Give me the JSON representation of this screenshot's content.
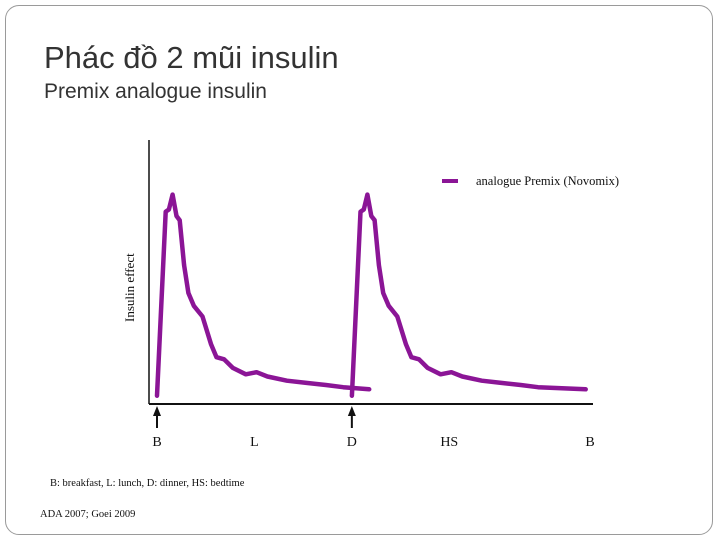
{
  "slide": {
    "title": "Phác đồ 2 mũi insulin",
    "subtitle": "Premix analogue insulin",
    "abbreviations": "B: breakfast, L: lunch, D: dinner, HS: bedtime",
    "source": "ADA 2007; Goei 2009"
  },
  "colors": {
    "series": "#8b1596",
    "axis": "#111111",
    "text": "#333333"
  },
  "chart_data": {
    "type": "line",
    "title": "",
    "xlabel": "",
    "ylabel": "Insulin effect",
    "x_ticks": [
      {
        "label": "B",
        "x": 0,
        "arrow": true
      },
      {
        "label": "L",
        "x": 4.5,
        "arrow": false
      },
      {
        "label": "D",
        "x": 9,
        "arrow": true
      },
      {
        "label": "HS",
        "x": 13.5,
        "arrow": false
      },
      {
        "label": "B",
        "x": 20,
        "arrow": false
      }
    ],
    "xlim": [
      0,
      20
    ],
    "ylim": [
      0,
      100
    ],
    "grid": false,
    "legend": {
      "position": "top-right",
      "entries": [
        "analogue Premix (Novomix)"
      ]
    },
    "series": [
      {
        "name": "analogue Premix (Novomix)",
        "x": [
          0,
          0.4,
          0.55,
          0.72,
          0.9,
          1.05,
          1.25,
          1.45,
          1.7,
          2.1,
          2.5,
          2.75,
          3.1,
          3.5,
          4.1,
          4.6,
          5.1,
          6.0,
          6.9,
          7.8,
          8.6,
          9.8
        ],
        "y": [
          2,
          88,
          89,
          96,
          86,
          84,
          63,
          50,
          44,
          39,
          26,
          20,
          19,
          15,
          12,
          13,
          11,
          9,
          8,
          7,
          6,
          5
        ]
      },
      {
        "name": "analogue Premix (Novomix)",
        "x": [
          9,
          9.4,
          9.55,
          9.72,
          9.9,
          10.05,
          10.25,
          10.45,
          10.7,
          11.1,
          11.5,
          11.75,
          12.1,
          12.5,
          13.1,
          13.6,
          14.1,
          15.0,
          15.9,
          16.8,
          17.6,
          19.8
        ],
        "y": [
          2,
          88,
          89,
          96,
          86,
          84,
          63,
          50,
          44,
          39,
          26,
          20,
          19,
          15,
          12,
          13,
          11,
          9,
          8,
          7,
          6,
          5
        ]
      }
    ]
  }
}
